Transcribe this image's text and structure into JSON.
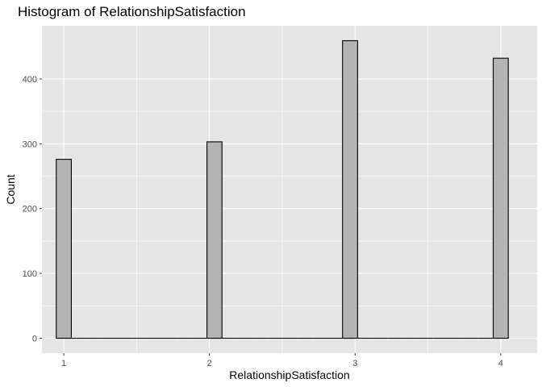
{
  "chart_data": {
    "type": "bar",
    "title": "Histogram of RelationshipSatisfaction",
    "xlabel": "RelationshipSatisfaction",
    "ylabel": "Count",
    "categories": [
      "1",
      "2",
      "3",
      "4"
    ],
    "x": [
      1,
      2,
      3,
      4
    ],
    "values": [
      276,
      303,
      459,
      432
    ],
    "bin_count": 30,
    "xlim": [
      0.85,
      4.25
    ],
    "ylim": [
      -23,
      482
    ],
    "x_ticks": [
      1,
      2,
      3,
      4
    ],
    "y_ticks": [
      0,
      100,
      200,
      300,
      400
    ],
    "grid": true,
    "legend": "none",
    "colors": {
      "panel_background": "#e5e5e5",
      "grid_major": "#ffffff",
      "bar_fill": "#b3b3b3",
      "bar_outline": "#000000",
      "tick_text": "#4d4d4d"
    }
  }
}
